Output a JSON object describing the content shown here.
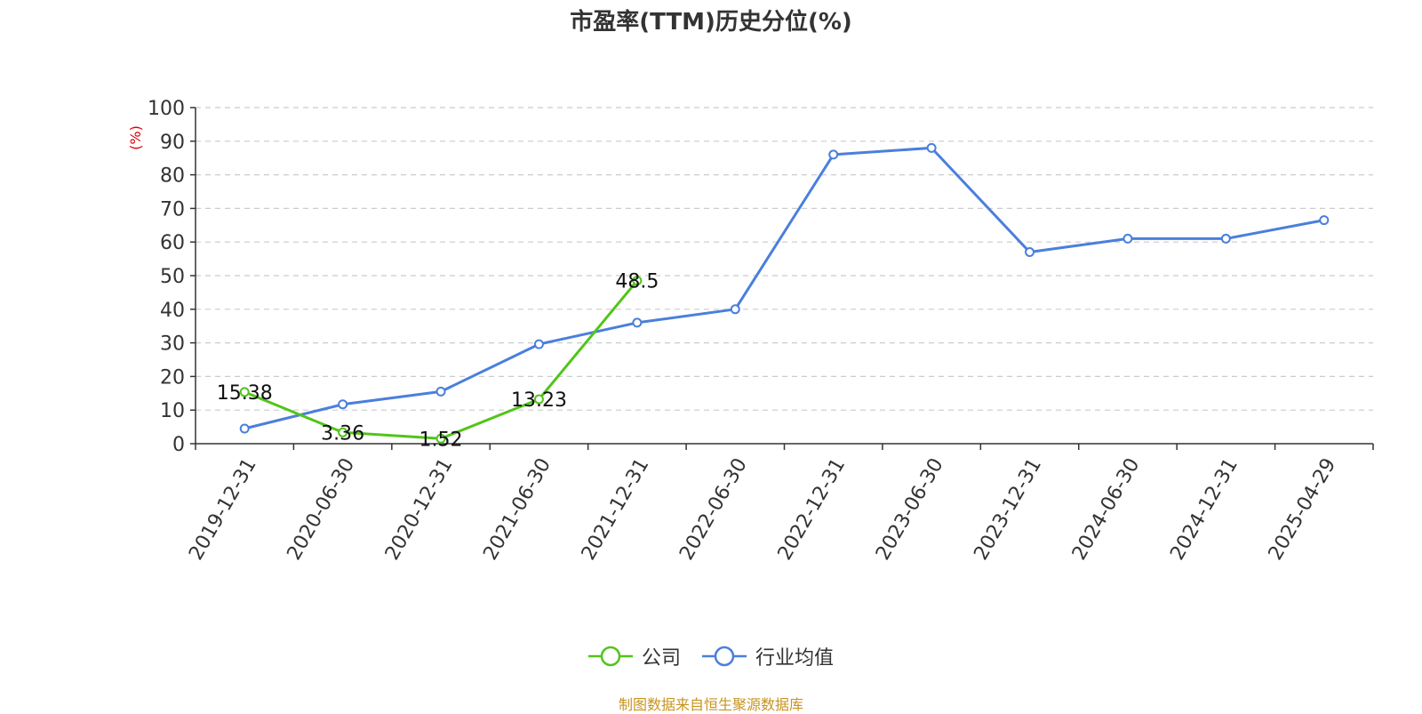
{
  "title": "市盈率(TTM)历史分位(%)",
  "source": "制图数据来自恒生聚源数据库",
  "chart_data": {
    "type": "line",
    "title": "市盈率(TTM)历史分位(%)",
    "ylabel": "(%)",
    "xlabel": "",
    "ylim": [
      0,
      100
    ],
    "yticks": [
      0,
      10,
      20,
      30,
      40,
      50,
      60,
      70,
      80,
      90,
      100
    ],
    "grid": true,
    "legend_position": "bottom",
    "categories": [
      "2019-12-31",
      "2020-06-30",
      "2020-12-31",
      "2021-06-30",
      "2021-12-31",
      "2022-06-30",
      "2022-12-31",
      "2023-06-30",
      "2023-12-31",
      "2024-06-30",
      "2024-12-31",
      "2025-04-29"
    ],
    "series": [
      {
        "name": "公司",
        "color": "#52c41a",
        "values": [
          15.38,
          3.36,
          1.52,
          13.23,
          48.5,
          null,
          null,
          null,
          null,
          null,
          null,
          null
        ],
        "labels": [
          "15.38",
          "3.36",
          "1.52",
          "13.23",
          "48.5"
        ]
      },
      {
        "name": "行业均值",
        "color": "#4a7fdc",
        "values": [
          4.5,
          11.7,
          15.5,
          29.6,
          36,
          40,
          86,
          88,
          57,
          61,
          61,
          66.5
        ]
      }
    ]
  }
}
